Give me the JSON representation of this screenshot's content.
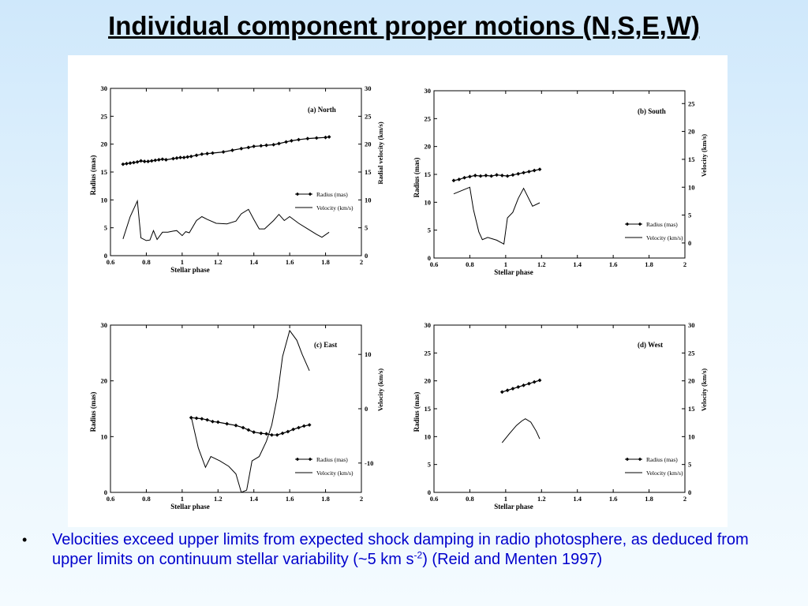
{
  "slide": {
    "title": "Individual component proper motions (N,S,E,W)",
    "bullet": {
      "text_before": "Velocities exceed upper limits from expected shock damping in radio photosphere, as deduced from upper limits on continuum stellar variability (~5 km s",
      "superscript": "-2",
      "text_after": ") (Reid and Menten 1997)"
    }
  },
  "chart_data": [
    {
      "type": "line",
      "title": "(a) North",
      "xlabel": "Stellar phase",
      "ylabel": "Radius (mas)",
      "ylabel_right": "Radial velocity (km/s)",
      "xlim": [
        0.6,
        2.0
      ],
      "ylim": [
        0,
        30
      ],
      "y2lim": [
        0,
        30
      ],
      "xticks": [
        "0.6",
        "0.8",
        "1",
        "1.2",
        "1.4",
        "1.6",
        "1.8",
        "2"
      ],
      "yticks": [
        "0",
        "5",
        "10",
        "15",
        "20",
        "25",
        "30"
      ],
      "y2ticks": [
        "0",
        "5",
        "10",
        "15",
        "20",
        "25",
        "30"
      ],
      "legend_position": "right-middle",
      "series": [
        {
          "name": "Radius (mas)",
          "axis": "left",
          "marker": "diamond",
          "x": [
            0.67,
            0.69,
            0.71,
            0.73,
            0.75,
            0.77,
            0.79,
            0.81,
            0.83,
            0.85,
            0.87,
            0.89,
            0.91,
            0.95,
            0.97,
            0.99,
            1.01,
            1.03,
            1.05,
            1.08,
            1.11,
            1.14,
            1.17,
            1.23,
            1.28,
            1.33,
            1.37,
            1.4,
            1.44,
            1.47,
            1.51,
            1.54,
            1.58,
            1.61,
            1.65,
            1.7,
            1.75,
            1.8,
            1.82
          ],
          "values": [
            16.4,
            16.5,
            16.6,
            16.7,
            16.8,
            17.0,
            16.9,
            16.9,
            17.0,
            17.1,
            17.2,
            17.3,
            17.2,
            17.4,
            17.5,
            17.6,
            17.6,
            17.7,
            17.8,
            18.0,
            18.2,
            18.3,
            18.4,
            18.6,
            18.9,
            19.2,
            19.4,
            19.6,
            19.7,
            19.8,
            19.9,
            20.1,
            20.4,
            20.6,
            20.8,
            21.0,
            21.1,
            21.2,
            21.3
          ]
        },
        {
          "name": "Velocity (km/s)",
          "axis": "right",
          "marker": "none",
          "x": [
            0.67,
            0.71,
            0.75,
            0.77,
            0.8,
            0.82,
            0.84,
            0.86,
            0.89,
            0.92,
            0.95,
            0.97,
            1.0,
            1.02,
            1.04,
            1.08,
            1.11,
            1.14,
            1.19,
            1.25,
            1.3,
            1.33,
            1.37,
            1.4,
            1.43,
            1.46,
            1.51,
            1.54,
            1.57,
            1.6,
            1.65,
            1.7,
            1.75,
            1.78,
            1.82
          ],
          "values": [
            3.0,
            7.0,
            9.8,
            3.2,
            2.7,
            2.8,
            4.5,
            2.9,
            4.2,
            4.2,
            4.4,
            4.5,
            3.6,
            4.3,
            4.1,
            6.3,
            7.0,
            6.5,
            5.8,
            5.7,
            6.2,
            7.5,
            8.3,
            6.5,
            4.8,
            4.8,
            6.3,
            7.4,
            6.3,
            7.0,
            5.8,
            4.8,
            3.8,
            3.3,
            4.2
          ]
        }
      ]
    },
    {
      "type": "line",
      "title": "(b) South",
      "xlabel": "Stellar phase",
      "ylabel": "Radius (mas)",
      "ylabel_right": "Velocity (km/s)",
      "xlim": [
        0.6,
        2.0
      ],
      "ylim": [
        0,
        30
      ],
      "y2lim": [
        -2.7,
        27.3
      ],
      "xticks": [
        "0.6",
        "0.8",
        "1",
        "1.2",
        "1.4",
        "1.6",
        "1.8",
        "2"
      ],
      "yticks": [
        "0",
        "5",
        "10",
        "15",
        "20",
        "25",
        "30"
      ],
      "y2ticks": [
        "0",
        "5",
        "10",
        "15",
        "20",
        "25"
      ],
      "legend_position": "bottom-right",
      "series": [
        {
          "name": "Radius (mas)",
          "axis": "left",
          "marker": "diamond",
          "x": [
            0.71,
            0.74,
            0.77,
            0.8,
            0.83,
            0.86,
            0.89,
            0.92,
            0.95,
            0.98,
            1.01,
            1.04,
            1.07,
            1.1,
            1.13,
            1.16,
            1.19
          ],
          "values": [
            13.9,
            14.1,
            14.4,
            14.6,
            14.8,
            14.7,
            14.8,
            14.7,
            14.9,
            14.8,
            14.7,
            14.9,
            15.1,
            15.3,
            15.5,
            15.7,
            15.9
          ]
        },
        {
          "name": "Velocity (km/s)",
          "axis": "right",
          "marker": "none",
          "x": [
            0.71,
            0.8,
            0.82,
            0.85,
            0.87,
            0.9,
            0.95,
            0.99,
            1.01,
            1.04,
            1.07,
            1.1,
            1.15,
            1.19
          ],
          "values": [
            8.8,
            10.0,
            6.0,
            2.0,
            0.6,
            1.0,
            0.5,
            -0.2,
            4.5,
            5.5,
            8.0,
            9.8,
            6.6,
            7.2
          ]
        }
      ]
    },
    {
      "type": "line",
      "title": "(c) East",
      "xlabel": "Stellar phase",
      "ylabel": "Radius (mas)",
      "ylabel_right": "Velocity (km/s)",
      "xlim": [
        0.6,
        2.0
      ],
      "ylim": [
        0,
        30
      ],
      "y2lim": [
        -15.4,
        15.4
      ],
      "xticks": [
        "0.6",
        "0.8",
        "1",
        "1.2",
        "1.4",
        "1.6",
        "1.8",
        "2"
      ],
      "yticks": [
        "0",
        "10",
        "20",
        "30"
      ],
      "y2ticks": [
        "-10",
        "0",
        "10"
      ],
      "legend_position": "bottom-right",
      "series": [
        {
          "name": "Radius (mas)",
          "axis": "left",
          "marker": "diamond",
          "x": [
            1.05,
            1.08,
            1.11,
            1.14,
            1.17,
            1.2,
            1.25,
            1.3,
            1.34,
            1.37,
            1.4,
            1.44,
            1.47,
            1.5,
            1.53,
            1.56,
            1.59,
            1.62,
            1.65,
            1.68,
            1.71
          ],
          "values": [
            13.4,
            13.3,
            13.2,
            13.0,
            12.7,
            12.6,
            12.3,
            12.0,
            11.6,
            11.2,
            10.8,
            10.6,
            10.5,
            10.3,
            10.3,
            10.6,
            10.9,
            11.3,
            11.6,
            11.9,
            12.1
          ]
        },
        {
          "name": "Velocity (km/s)",
          "axis": "right",
          "marker": "none",
          "x": [
            1.05,
            1.09,
            1.13,
            1.16,
            1.21,
            1.26,
            1.3,
            1.33,
            1.36,
            1.39,
            1.43,
            1.47,
            1.5,
            1.53,
            1.56,
            1.6,
            1.64,
            1.67,
            1.71
          ],
          "values": [
            -1.4,
            -7.2,
            -10.8,
            -8.8,
            -9.6,
            -10.6,
            -12.0,
            -15.4,
            -15.0,
            -9.6,
            -8.8,
            -6.0,
            -3.0,
            2.0,
            9.6,
            14.4,
            12.6,
            10.0,
            7.0
          ]
        }
      ]
    },
    {
      "type": "line",
      "title": "(d) West",
      "xlabel": "Stellar phase",
      "ylabel": "Radius (mas)",
      "ylabel_right": "Velocity (km/s)",
      "xlim": [
        0.6,
        2.0
      ],
      "ylim": [
        0,
        30
      ],
      "y2lim": [
        0,
        30
      ],
      "xticks": [
        "0.6",
        "0.8",
        "1",
        "1.2",
        "1.4",
        "1.6",
        "1.8",
        "2"
      ],
      "yticks": [
        "0",
        "5",
        "10",
        "15",
        "20",
        "25",
        "30"
      ],
      "y2ticks": [
        "0",
        "5",
        "10",
        "15",
        "20",
        "25",
        "30"
      ],
      "legend_position": "bottom-right",
      "series": [
        {
          "name": "Radius (mas)",
          "axis": "left",
          "marker": "diamond",
          "x": [
            0.98,
            1.01,
            1.04,
            1.07,
            1.1,
            1.13,
            1.16,
            1.19
          ],
          "values": [
            18.0,
            18.3,
            18.6,
            18.9,
            19.2,
            19.5,
            19.8,
            20.1
          ]
        },
        {
          "name": "Velocity (km/s)",
          "axis": "right",
          "marker": "none",
          "x": [
            0.98,
            1.02,
            1.06,
            1.09,
            1.11,
            1.14,
            1.17,
            1.19
          ],
          "values": [
            8.9,
            10.5,
            12.0,
            12.8,
            13.2,
            12.6,
            11.0,
            9.6
          ]
        }
      ]
    }
  ]
}
